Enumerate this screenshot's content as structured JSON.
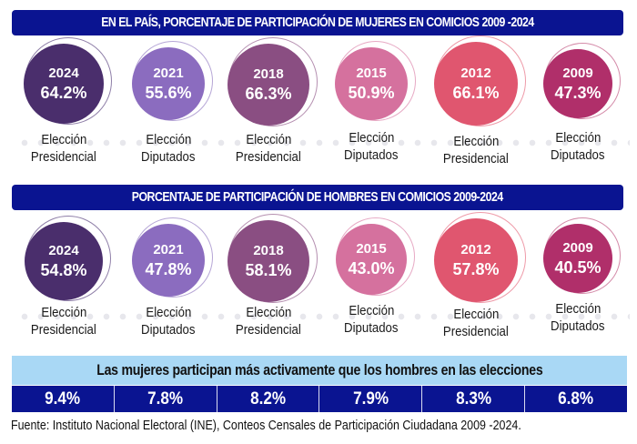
{
  "women": {
    "title": "EN EL PAÍS, PORCENTAJE DE PARTICIPACIÓN DE MUJERES EN COMICIOS 2009 -2024",
    "items": [
      {
        "year": "2024",
        "pct": "64.2%",
        "line1": "Elección",
        "line2": "Presidencial",
        "color": "#4a2e6c",
        "ring": "#8f7fa8"
      },
      {
        "year": "2021",
        "pct": "55.6%",
        "line1": "Elección",
        "line2": "Diputados",
        "color": "#8b6cbf",
        "ring": "#b6a6d6"
      },
      {
        "year": "2018",
        "pct": "66.3%",
        "line1": "Elección",
        "line2": "Presidencial",
        "color": "#8a4e82",
        "ring": "#b58fb0"
      },
      {
        "year": "2015",
        "pct": "50.9%",
        "line1": "Elección",
        "line2": "Diputados",
        "color": "#d5719e",
        "ring": "#e7a9c4"
      },
      {
        "year": "2012",
        "pct": "66.1%",
        "line1": "Elección",
        "line2": "Presidencial",
        "color": "#e0566f",
        "ring": "#ee9aa8"
      },
      {
        "year": "2009",
        "pct": "47.3%",
        "line1": "Elección",
        "line2": "Diputados",
        "color": "#b02f6a",
        "ring": "#d48ba9"
      }
    ]
  },
  "men": {
    "title": "PORCENTAJE DE PARTICIPACIÓN DE HOMBRES EN COMICIOS 2009-2024",
    "items": [
      {
        "year": "2024",
        "pct": "54.8%",
        "line1": "Elección",
        "line2": "Presidencial",
        "color": "#4a2e6c",
        "ring": "#8f7fa8"
      },
      {
        "year": "2021",
        "pct": "47.8%",
        "line1": "Elección",
        "line2": "Diputados",
        "color": "#8b6cbf",
        "ring": "#b6a6d6"
      },
      {
        "year": "2018",
        "pct": "58.1%",
        "line1": "Elección",
        "line2": "Presidencial",
        "color": "#8a4e82",
        "ring": "#b58fb0"
      },
      {
        "year": "2015",
        "pct": "43.0%",
        "line1": "Elección",
        "line2": "Diputados",
        "color": "#d5719e",
        "ring": "#e7a9c4"
      },
      {
        "year": "2012",
        "pct": "57.8%",
        "line1": "Elección",
        "line2": "Presidencial",
        "color": "#e0566f",
        "ring": "#ee9aa8"
      },
      {
        "year": "2009",
        "pct": "40.5%",
        "line1": "Elección",
        "line2": "Diputados",
        "color": "#b02f6a",
        "ring": "#d48ba9"
      }
    ]
  },
  "summary": {
    "text": "Las mujeres participan más activamente que los hombres en las elecciones",
    "differences": [
      "9.4%",
      "7.8%",
      "8.2%",
      "7.9%",
      "8.3%",
      "6.8%"
    ]
  },
  "source": "Fuente: Instituto Nacional Electoral (INE), Conteos Censales de Participación Ciudadana 2009 -2024.",
  "colors": {
    "banner": "#0a1491",
    "summary_bg": "#a9d8f5"
  }
}
